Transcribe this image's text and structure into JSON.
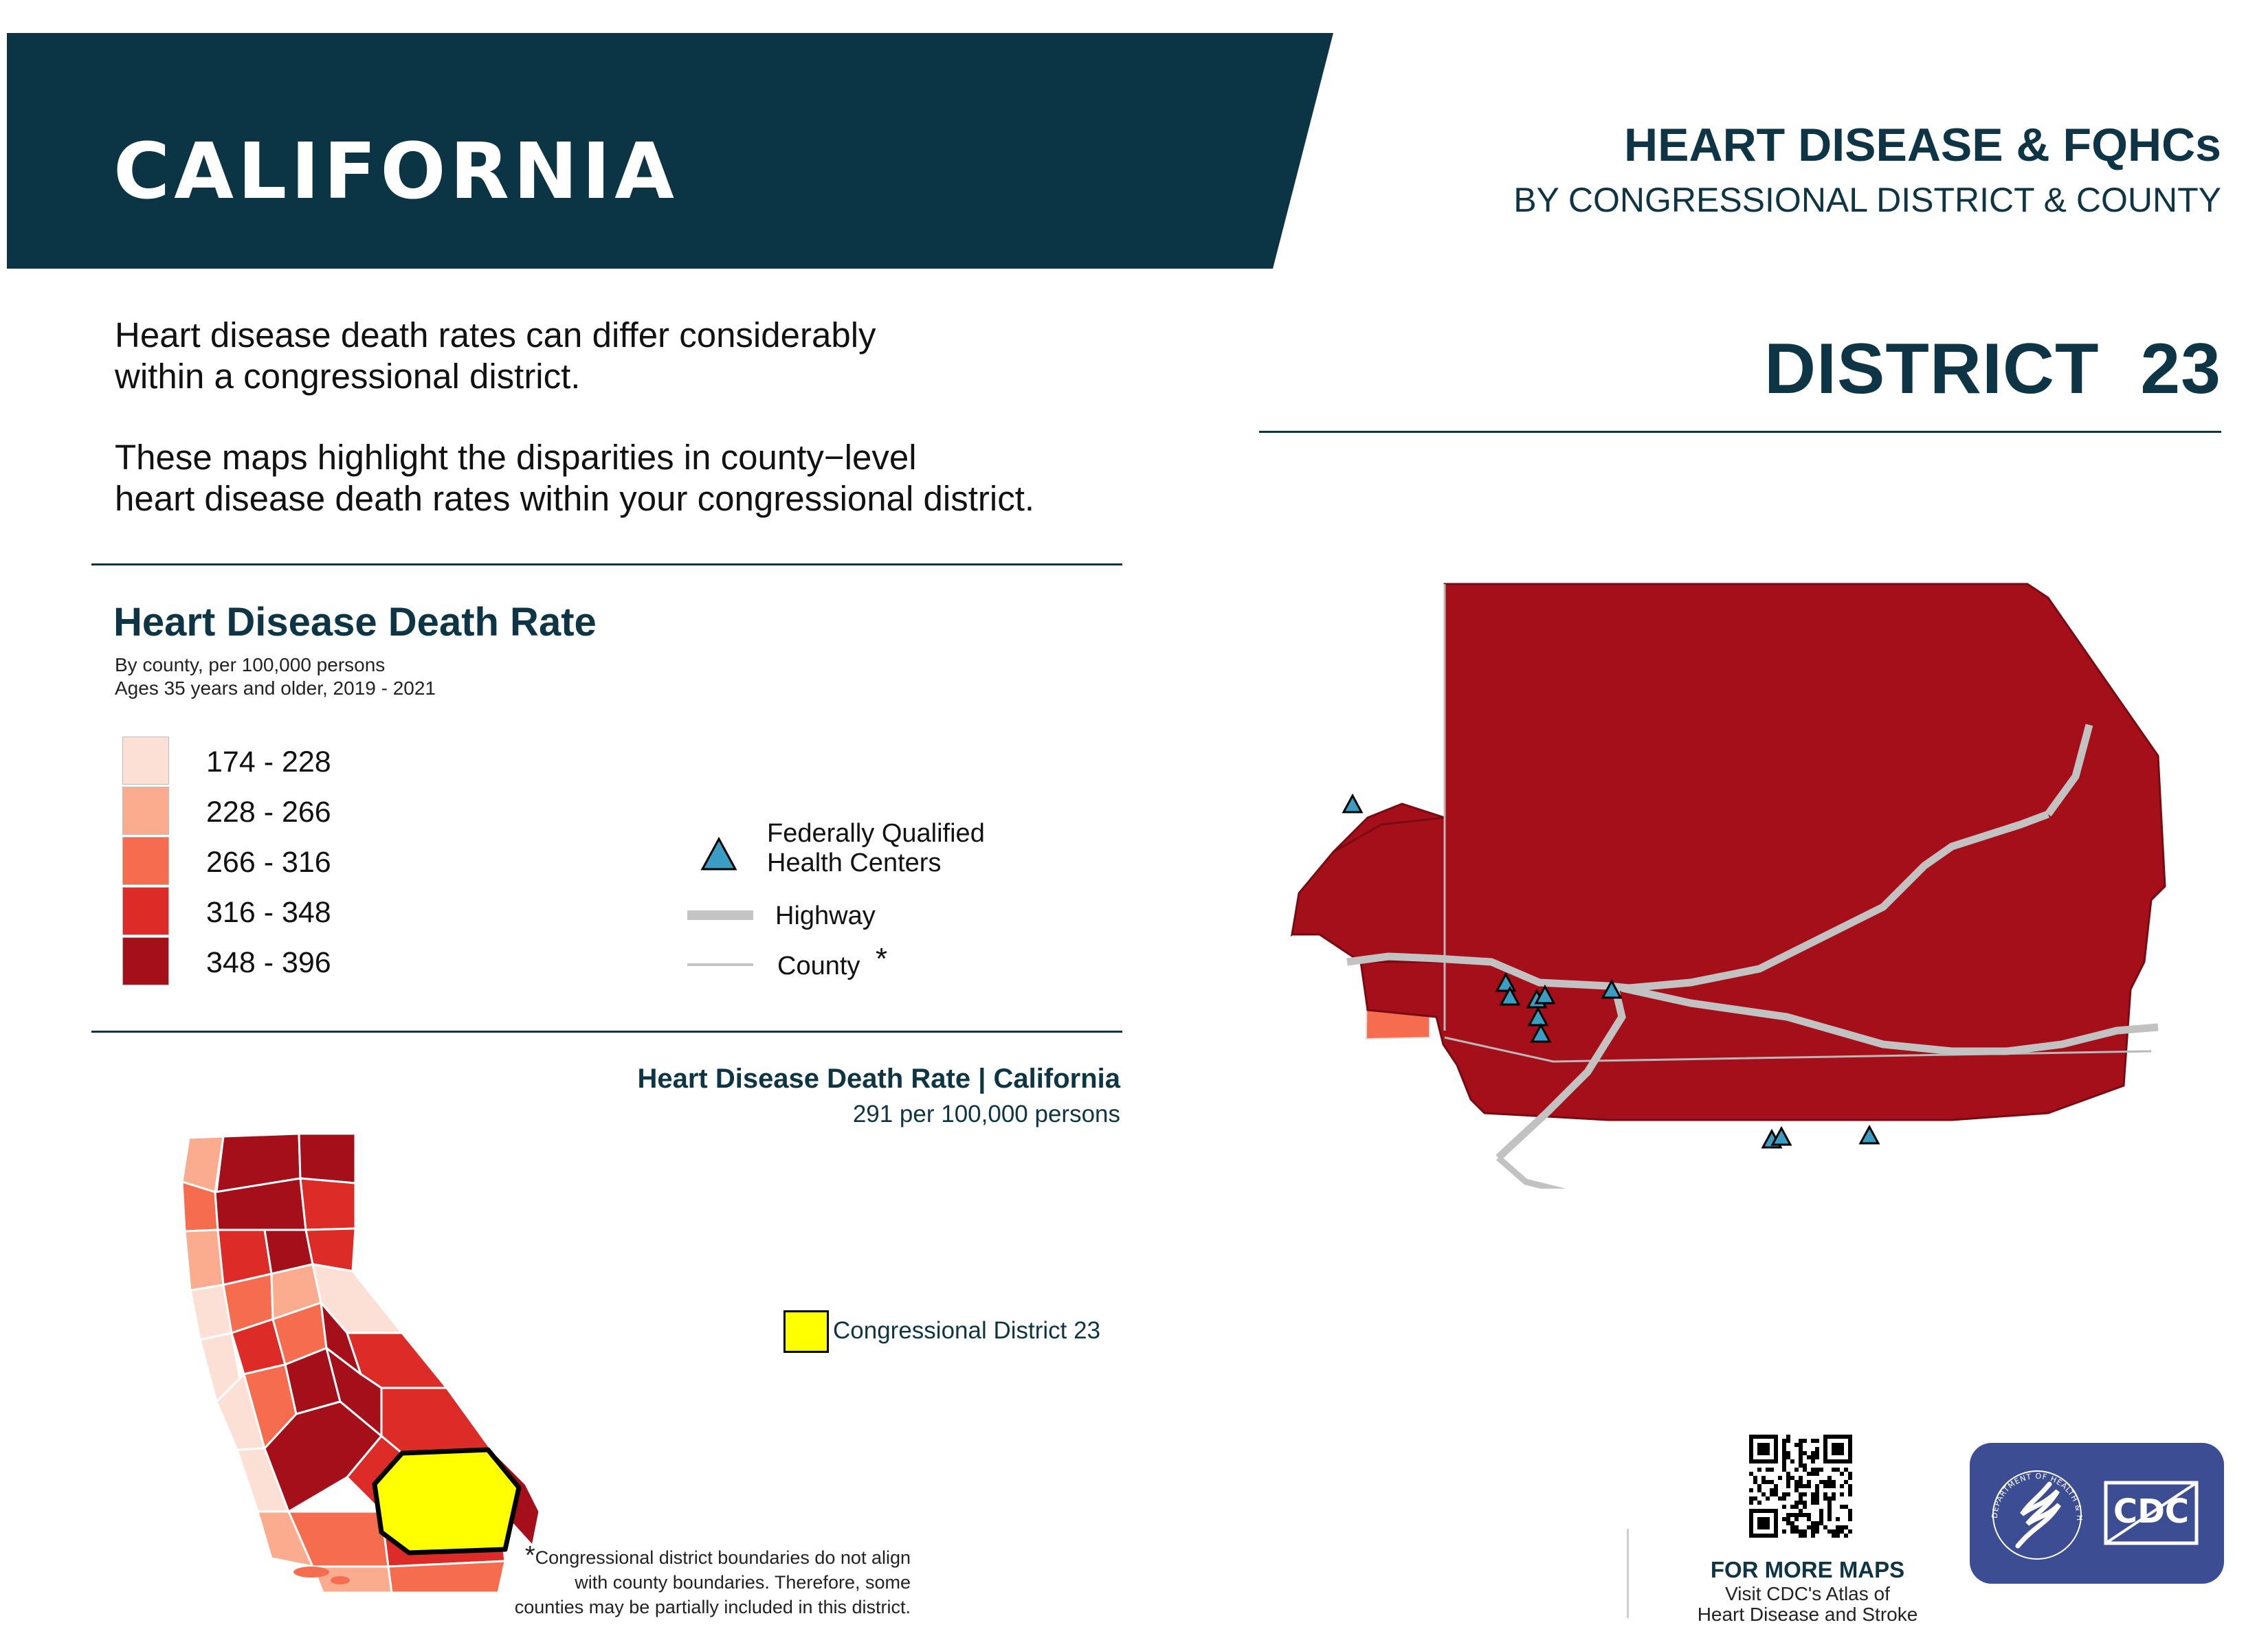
{
  "header": {
    "state": "CALIFORNIA",
    "title": "HEART DISEASE & FQHCs",
    "subtitle": "BY CONGRESSIONAL DISTRICT & COUNTY",
    "district_label": "DISTRICT",
    "district_number": "23"
  },
  "intro": {
    "para1_line1": "Heart disease death rates can differ considerably",
    "para1_line2": "within a congressional district.",
    "para2_line1": "These maps highlight the disparities in county−level",
    "para2_line2": "heart disease death rates within your congressional district."
  },
  "legend": {
    "title": "Heart Disease Death Rate",
    "note1": "By county, per 100,000 persons",
    "note2": "Ages 35 years and older, 2019 - 2021",
    "classes": [
      {
        "label": "174 - 228",
        "color": "#fde0d5"
      },
      {
        "label": "228 - 266",
        "color": "#fbab8e"
      },
      {
        "label": "266 - 316",
        "color": "#f66c4e"
      },
      {
        "label": "316 - 348",
        "color": "#dd2b27"
      },
      {
        "label": "348 - 396",
        "color": "#a50f19"
      }
    ],
    "fqhc_line1": "Federally Qualified",
    "fqhc_line2": "Health Centers",
    "highway": "Highway",
    "county": "County",
    "county_mark": "*",
    "fqhc_icon": "triangle-icon",
    "fqhc_color": "#3a9ec4"
  },
  "california": {
    "title": "Heart Disease Death Rate | California",
    "rate": "291 per 100,000 persons",
    "district_legend": "Congressional District 23",
    "district_color": "#ffff00"
  },
  "footer": {
    "footnote_mark": "*",
    "footnote_line1": "Congressional district boundaries do not align",
    "footnote_line2": "with county boundaries. Therefore, some",
    "footnote_line3": "counties may be partially included in this district.",
    "more_title": "FOR MORE MAPS",
    "more_line1": "Visit CDC's Atlas of",
    "more_line2": "Heart Disease and Stroke",
    "logo_text": "CDC",
    "seal_text": "DEPARTMENT OF HEALTH & HUMAN SERVICES · USA"
  }
}
